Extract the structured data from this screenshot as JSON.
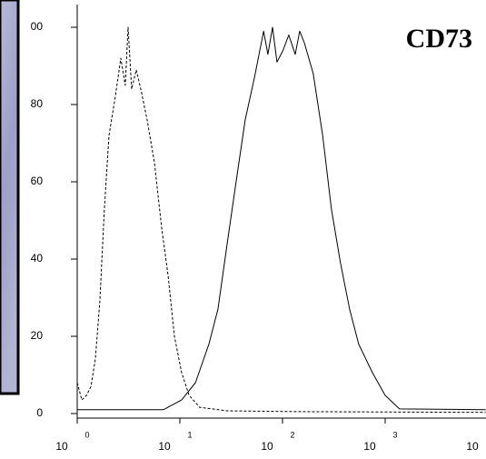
{
  "chart_data": {
    "type": "line",
    "title": "CD73",
    "xscale": "log",
    "xlim": [
      1,
      10000
    ],
    "ylim": [
      0,
      100
    ],
    "xticks": [
      {
        "value": 1,
        "label": "10",
        "sup": "0"
      },
      {
        "value": 10,
        "label": "10",
        "sup": "1"
      },
      {
        "value": 100,
        "label": "10",
        "sup": "2"
      },
      {
        "value": 1000,
        "label": "10",
        "sup": "3"
      },
      {
        "value": 10000,
        "label": "10"
      }
    ],
    "yticks": [
      0,
      20,
      40,
      60,
      80,
      {
        "value": 100,
        "label": "00"
      }
    ],
    "series": [
      {
        "color": "#000",
        "dash": true,
        "x": [
          1.0,
          1.11,
          1.23,
          1.36,
          1.5,
          1.66,
          1.84,
          2.04,
          2.35,
          2.66,
          2.94,
          3.13,
          3.39,
          3.76,
          4.16,
          4.8,
          5.65,
          6.65,
          7.66,
          8.85,
          10.4,
          12.3,
          15.6,
          28.9,
          147,
          9550
        ],
        "values": [
          8,
          3.5,
          4.7,
          7,
          14,
          29,
          53,
          72,
          82,
          92,
          85,
          100,
          84,
          89,
          84,
          76,
          65,
          48,
          36,
          20,
          10.6,
          4.7,
          1.6,
          0.7,
          0.5,
          0.3
        ]
      },
      {
        "color": "#000",
        "dash": false,
        "x": [
          1,
          6.9,
          10.4,
          14.2,
          19.2,
          23.5,
          28.9,
          35.3,
          43.3,
          53.3,
          65.5,
          72,
          80,
          88.3,
          101,
          115,
          133,
          147,
          163,
          199,
          246,
          299,
          367,
          451,
          552,
          750,
          1000,
          1379,
          9550
        ],
        "values": [
          1,
          1,
          3.5,
          8,
          18,
          27,
          44,
          60,
          76,
          87,
          99,
          93,
          100,
          91,
          94,
          98,
          93,
          99,
          96,
          88,
          72,
          53,
          39,
          27,
          18,
          10.6,
          4.7,
          1.2,
          1
        ]
      }
    ]
  }
}
